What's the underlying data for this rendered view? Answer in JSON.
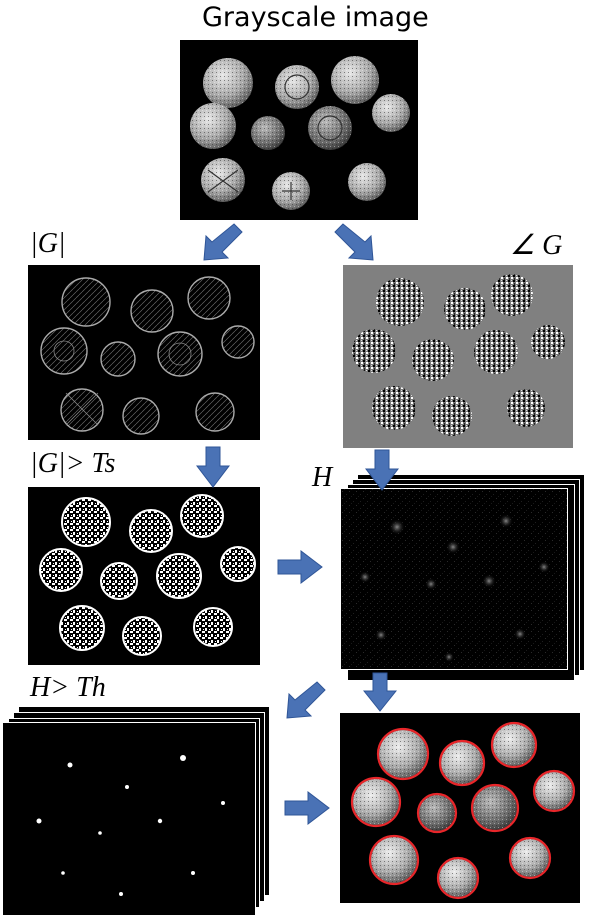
{
  "labels": {
    "grayscale": "Grayscale image",
    "g_mag": "|G|",
    "g_angle": "∠ G",
    "g_thresh": "|G|> Ts",
    "h": "H",
    "h_thresh": "H> Th"
  },
  "colors": {
    "arrow": "#4a72b5",
    "detection_circle": "#e8262a",
    "gradient_bg": "#808080"
  },
  "icons": [
    "arrow-down-icon",
    "arrow-right-icon",
    "arrow-down-left-icon"
  ]
}
